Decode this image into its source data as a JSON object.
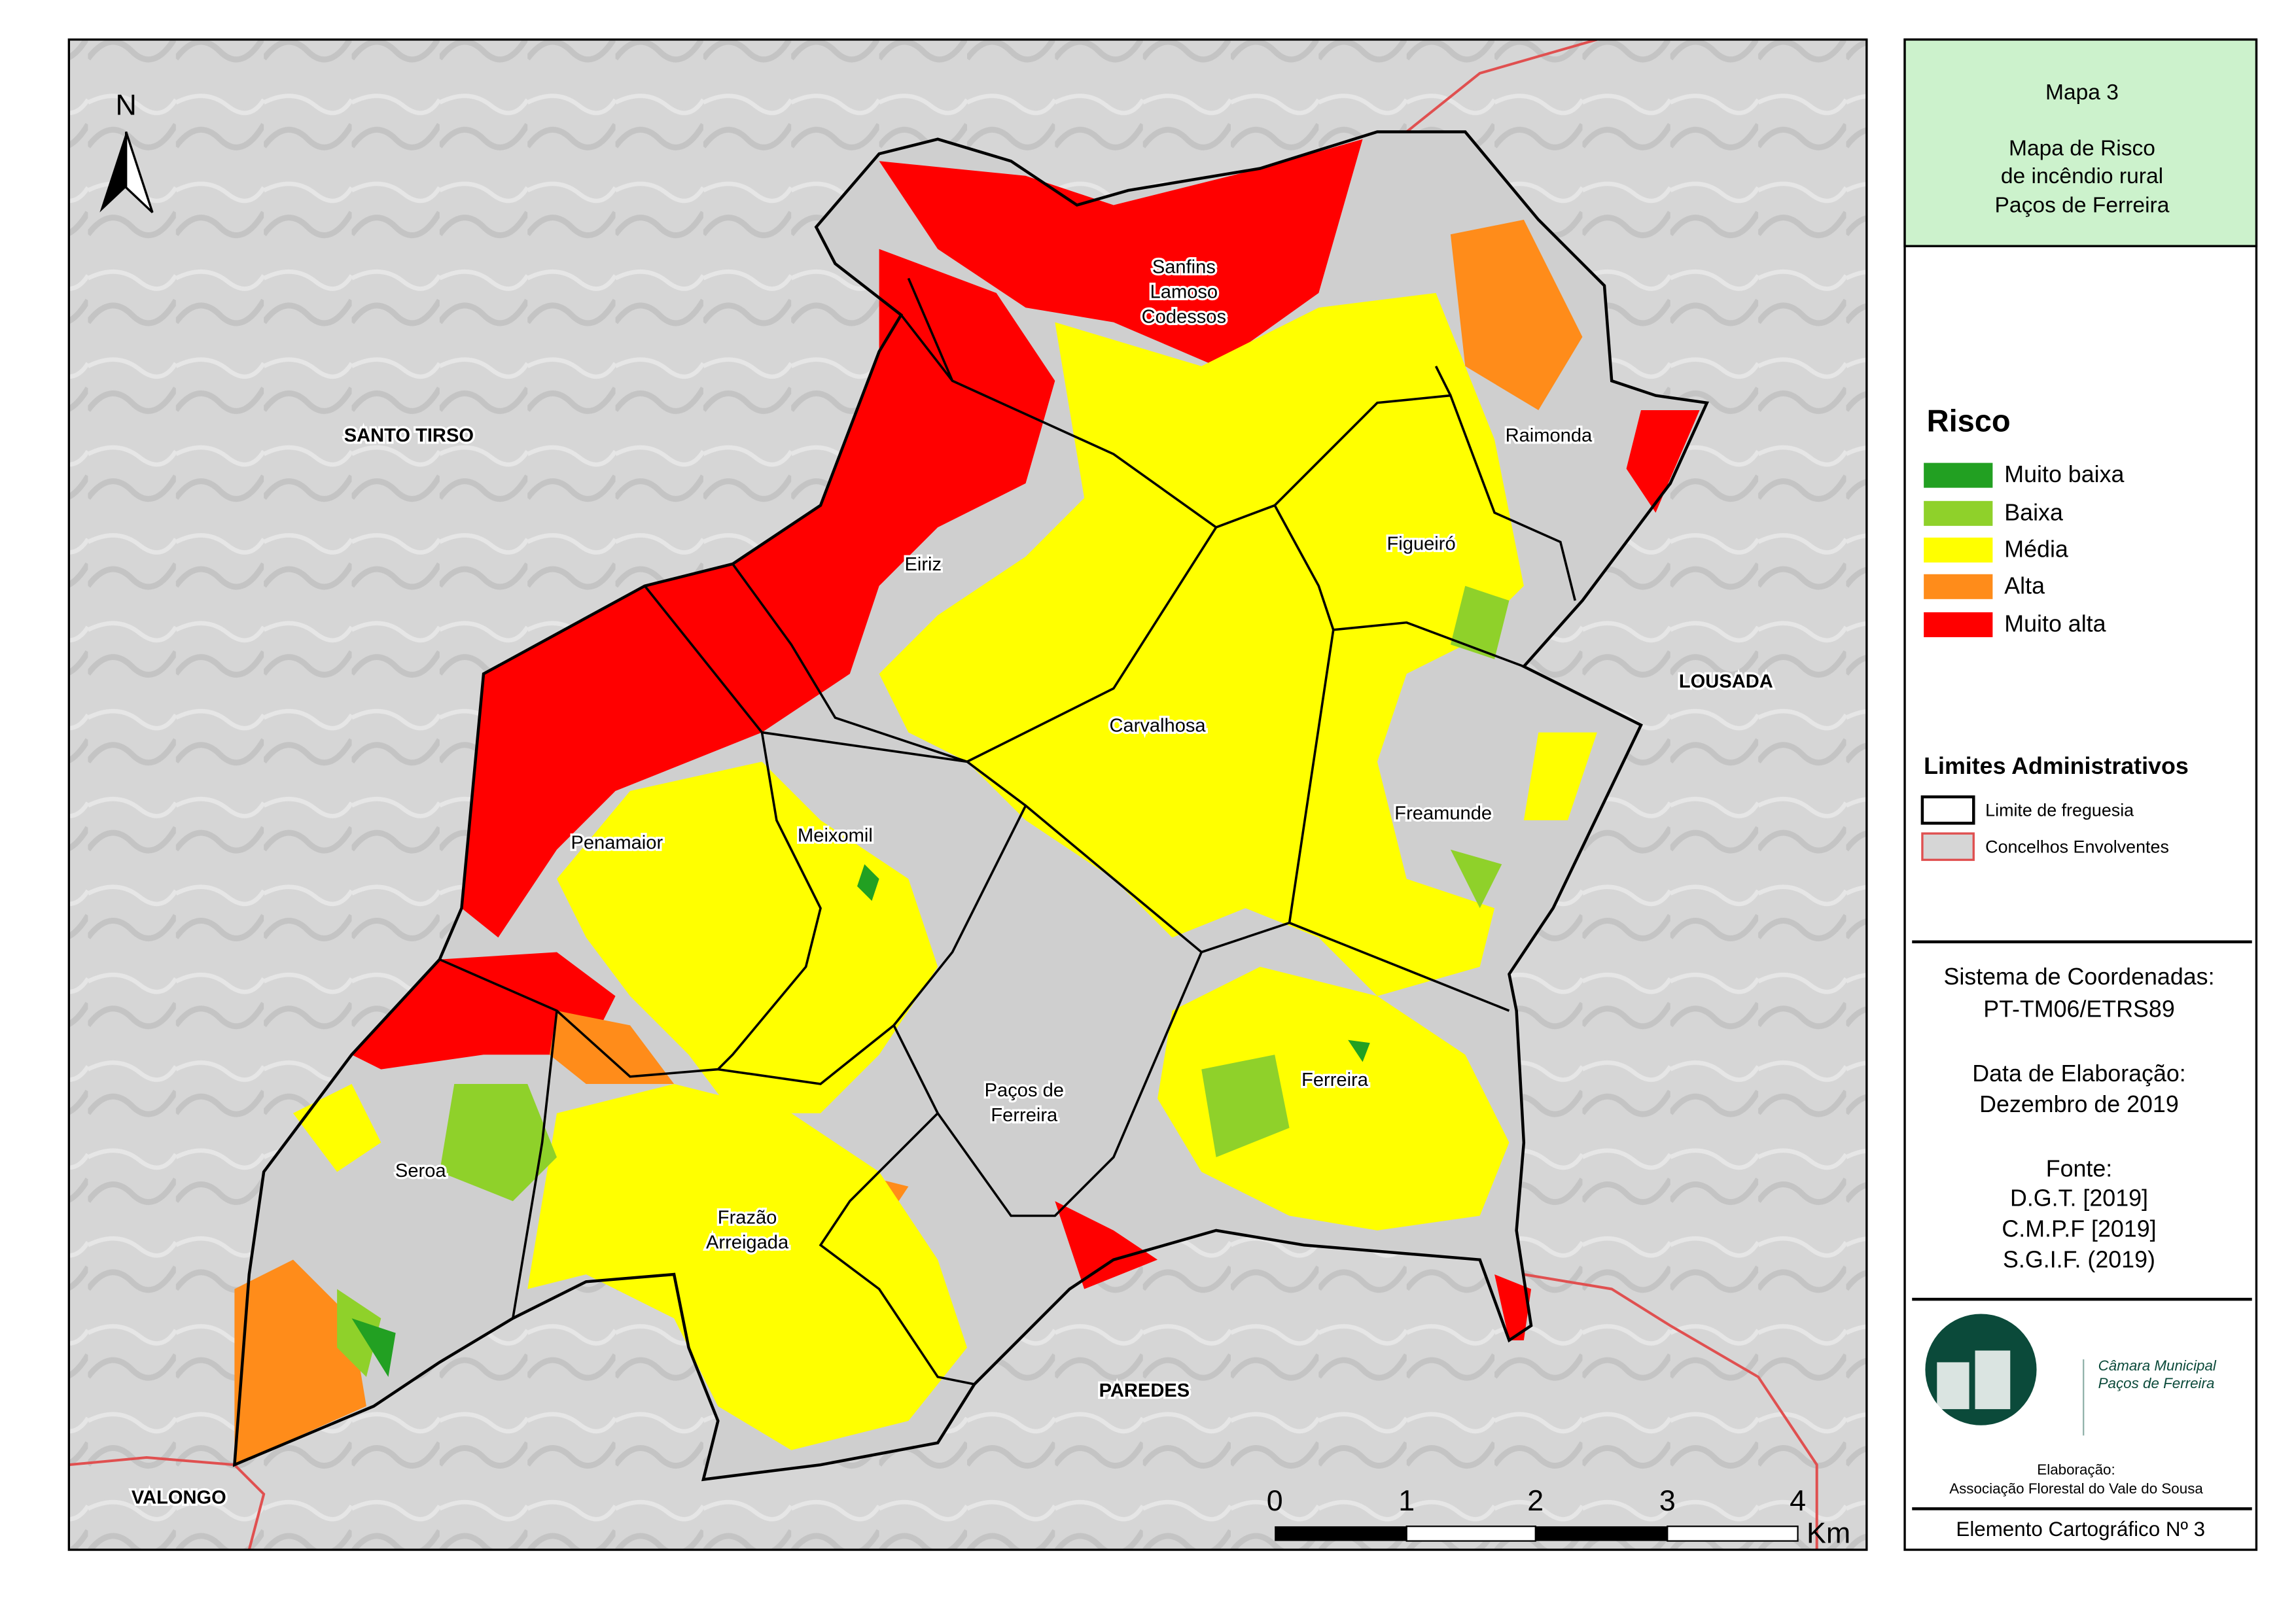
{
  "panel": {
    "title": [
      "Mapa 3",
      "Mapa de Risco",
      "de incêndio rural",
      "Paços de Ferreira"
    ]
  },
  "map": {
    "north": "N",
    "neighbours": [
      "SANTO TIRSO",
      "LOUSADA",
      "PAREDES",
      "VALONGO"
    ],
    "parishes": [
      [
        "Sanfins",
        "Lamoso",
        "Codessos"
      ],
      [
        "Raimonda"
      ],
      [
        "Eiriz"
      ],
      [
        "Figueiró"
      ],
      [
        "Carvalhosa"
      ],
      [
        "Freamunde"
      ],
      [
        "Penamaior"
      ],
      [
        "Meixomil"
      ],
      [
        "Paços de",
        "Ferreira"
      ],
      [
        "Ferreira"
      ],
      [
        "Seroa"
      ],
      [
        "Frazão",
        "Arreigada"
      ]
    ],
    "scale": {
      "ticks": [
        0,
        1,
        2,
        3,
        4
      ],
      "unit": "Km"
    }
  },
  "legend": {
    "title": "Risco",
    "items": [
      "Muito baixa",
      "Baixa",
      "Média",
      "Alta",
      "Muito alta"
    ],
    "admin_title": "Limites Administrativos",
    "admin_items": [
      "Limite de freguesia",
      "Concelhos Envolventes"
    ]
  },
  "info": {
    "lines": [
      "Sistema de Coordenadas:",
      "PT-TM06/ETRS89",
      "Data de Elaboração:",
      "Dezembro de 2019",
      "Fonte:",
      "D.G.T. [2019]",
      "C.M.P.F [2019]",
      "S.G.I.F. (2019)"
    ]
  },
  "logo": {
    "lines": [
      "Câmara Municipal",
      "Paços de Ferreira"
    ]
  },
  "credits": {
    "label": "Elaboração:",
    "author": "Associação Florestal do Vale do Sousa",
    "element": "Elemento Cartográfico Nº 3"
  }
}
